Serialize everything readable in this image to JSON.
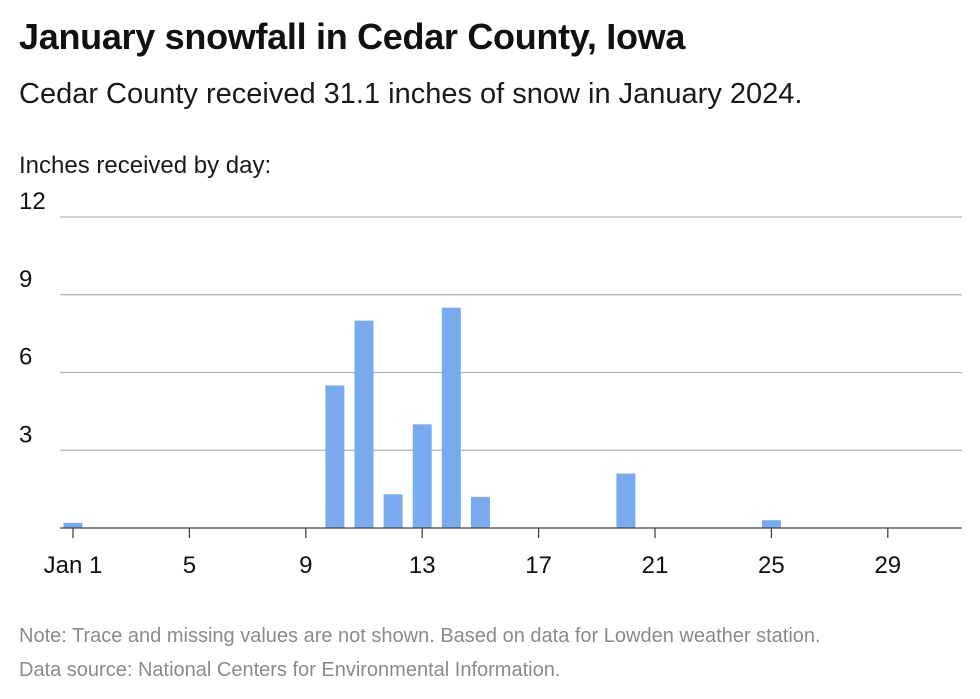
{
  "header": {
    "title": "January snowfall in Cedar County, Iowa",
    "subtitle": "Cedar County received 31.1 inches of snow in January 2024.",
    "ylabel": "Inches received by day:"
  },
  "footer": {
    "note": "Note: Trace and missing values are not shown. Based on data for Lowden weather station.",
    "source": "Data source: National Centers for Environmental Information."
  },
  "colors": {
    "bar": "#7aaaee",
    "grid": "#b3b3b3",
    "axis": "#444444",
    "text": "#111111"
  },
  "chart_data": {
    "type": "bar",
    "title": "January snowfall in Cedar County, Iowa",
    "subtitle": "Cedar County received 31.1 inches of snow in January 2024.",
    "ylabel": "Inches received by day:",
    "xlabel": "",
    "x": [
      1,
      10,
      11,
      12,
      13,
      14,
      15,
      20,
      25
    ],
    "values": [
      0.2,
      5.5,
      8.0,
      1.3,
      4.0,
      8.5,
      1.2,
      2.1,
      0.3
    ],
    "xlim": [
      1,
      31
    ],
    "xticks": [
      1,
      5,
      9,
      13,
      17,
      21,
      25,
      29
    ],
    "xtick_labels": [
      "Jan 1",
      "5",
      "9",
      "13",
      "17",
      "21",
      "25",
      "29"
    ],
    "ylim": [
      0,
      12
    ],
    "yticks": [
      3,
      6,
      9,
      12
    ],
    "ytick_labels": [
      "3",
      "6",
      "9",
      "12"
    ],
    "grid": true,
    "legend": "none"
  }
}
